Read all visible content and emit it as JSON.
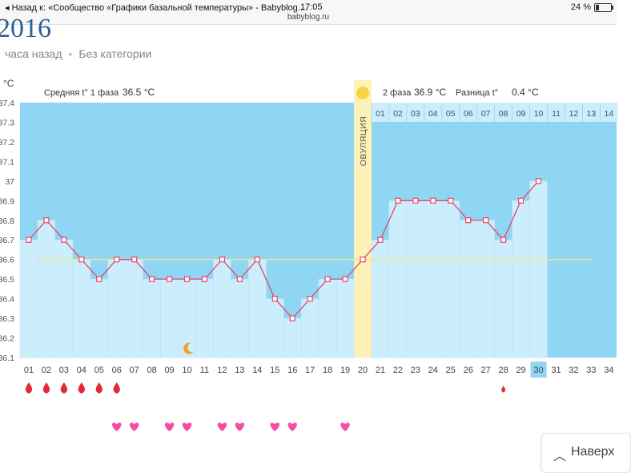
{
  "statusbar": {
    "back_text": "◂ Назад к: «Сообщество «Графики базальной температуры» - Babyblog....",
    "time": "17:05",
    "url": "babyblog.ru",
    "battery": "24 %"
  },
  "page": {
    "year_fragment": "2016",
    "time_ago": "часа назад",
    "category": "Без категории"
  },
  "back_to_top": {
    "label": "Наверх"
  },
  "colors": {
    "sky": "#8fd6f4",
    "bar": "#cceefc",
    "bar_border": "#b6e4f8",
    "line": "#e8436b",
    "coverline": "#f0e68c",
    "ovulation_band": "#fdf1b8",
    "header_bg": "#ffffff",
    "sun": "#f8d443",
    "moon": "#f0a030",
    "drop": "#e5293a",
    "heart": "#f14fa3",
    "current_day": "#8fd6f4"
  },
  "chart_data": {
    "type": "line",
    "title": "",
    "ylabel": "°C",
    "ylim": [
      36.1,
      37.4
    ],
    "y_ticks": [
      "36.1",
      "36.2",
      "36.3",
      "36.4",
      "36.5",
      "36.6",
      "36.7",
      "36.8",
      "36.9",
      "37",
      "37.1",
      "37.2",
      "37.3",
      "37.4"
    ],
    "coverline": 36.6,
    "cycle_days": [
      "01",
      "02",
      "03",
      "04",
      "05",
      "06",
      "07",
      "08",
      "09",
      "10",
      "11",
      "12",
      "13",
      "14",
      "15",
      "16",
      "17",
      "18",
      "19",
      "20",
      "21",
      "22",
      "23",
      "24",
      "25",
      "26",
      "27",
      "28",
      "29",
      "30",
      "31",
      "32",
      "33",
      "34"
    ],
    "current_day": "30",
    "temperature": [
      36.7,
      36.8,
      36.7,
      36.6,
      36.5,
      36.6,
      36.6,
      36.5,
      36.5,
      36.5,
      36.5,
      36.6,
      36.5,
      36.6,
      36.4,
      36.3,
      36.4,
      36.5,
      36.5,
      36.6,
      36.7,
      36.9,
      36.9,
      36.9,
      36.9,
      36.8,
      36.8,
      36.7,
      36.9,
      37.0
    ],
    "ovulation_day": "20",
    "ovulation_label": "ОВУЛЯЦИЯ",
    "phase1_label": "Средняя t° 1 фаза",
    "phase1_value": "36.5 °C",
    "phase2_label": "2 фаза",
    "phase2_value": "36.9 °C",
    "diff_label": "Разница t°",
    "diff_value": "0.4 °C",
    "phase2_days": [
      "01",
      "02",
      "03",
      "04",
      "05",
      "06",
      "07",
      "08",
      "09",
      "10",
      "11",
      "12",
      "13",
      "14"
    ],
    "markers": {
      "moon_days": [
        "10"
      ],
      "bleeding_heavy_days": [
        "01",
        "02",
        "03",
        "04",
        "05",
        "06"
      ],
      "bleeding_light_days": [
        "28"
      ],
      "intercourse_days": [
        "06",
        "07",
        "09",
        "10",
        "12",
        "13",
        "15",
        "16",
        "19"
      ]
    }
  }
}
